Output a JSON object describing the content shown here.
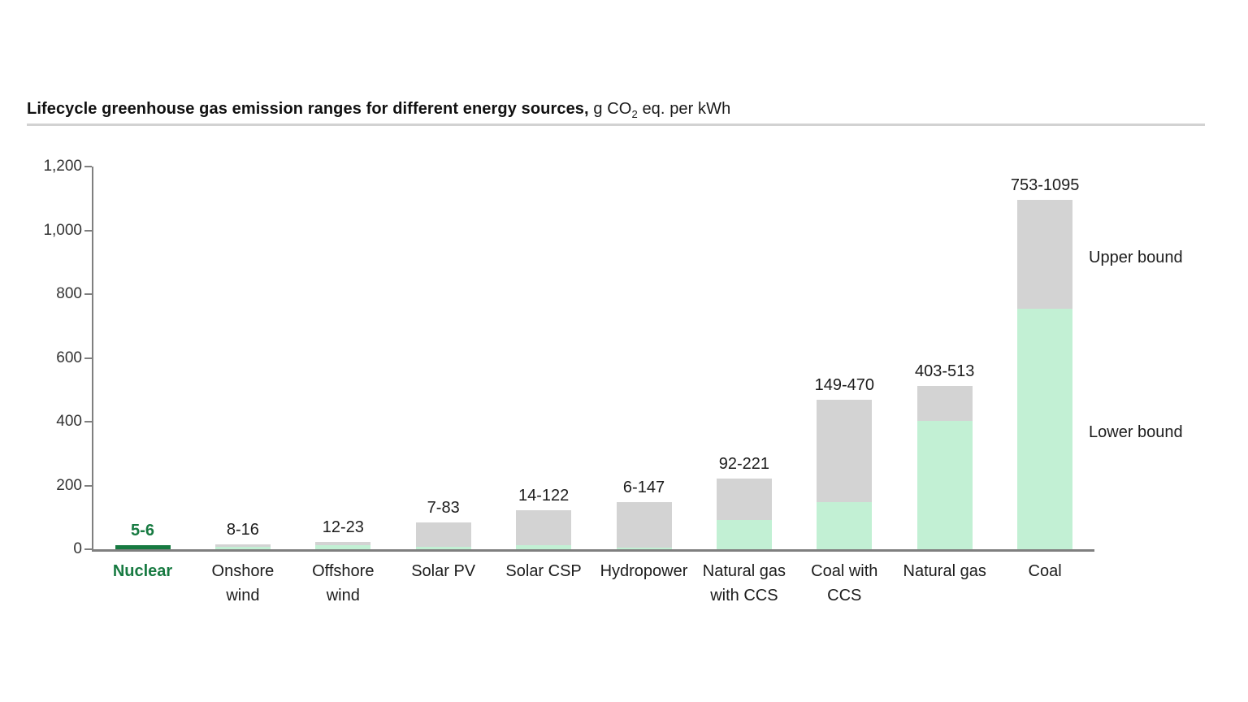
{
  "title": {
    "bold": "Lifecycle greenhouse gas emission ranges for different energy sources,",
    "unit_pre": " g CO",
    "unit_sub": "2",
    "unit_post": " eq. per kWh"
  },
  "legend": {
    "upper": "Upper bound",
    "lower": "Lower bound"
  },
  "colors": {
    "lower_bound_fill": "#c2f0d4",
    "upper_bound_fill": "#d3d3d3",
    "highlight_fill": "#177a41",
    "highlight_text": "#177a41",
    "axis": "#7f7f7f",
    "title_rule": "#d2d2d2",
    "text": "#1c1c1c"
  },
  "chart_data": {
    "type": "bar",
    "stacked": true,
    "title": "Lifecycle greenhouse gas emission ranges for different energy sources, g CO2 eq. per kWh",
    "xlabel": "",
    "ylabel": "g CO2 eq. per kWh",
    "ylim": [
      0,
      1200
    ],
    "ytick_step": 200,
    "ytick_labels": [
      "0",
      "200",
      "400",
      "600",
      "800",
      "1,000",
      "1,200"
    ],
    "grid": false,
    "legend_position": "right",
    "legend_entries": [
      "Upper bound",
      "Lower bound"
    ],
    "categories": [
      "Nuclear",
      "Onshore wind",
      "Offshore wind",
      "Solar PV",
      "Solar CSP",
      "Hydropower",
      "Natural gas with CCS",
      "Coal with CCS",
      "Natural gas",
      "Coal"
    ],
    "category_lines": [
      [
        "Nuclear"
      ],
      [
        "Onshore",
        "wind"
      ],
      [
        "Offshore",
        "wind"
      ],
      [
        "Solar PV"
      ],
      [
        "Solar CSP"
      ],
      [
        "Hydropower"
      ],
      [
        "Natural gas",
        "with CCS"
      ],
      [
        "Coal with",
        "CCS"
      ],
      [
        "Natural gas"
      ],
      [
        "Coal"
      ]
    ],
    "series": [
      {
        "name": "Lower bound",
        "values": [
          5,
          8,
          12,
          7,
          14,
          6,
          92,
          149,
          403,
          753
        ]
      },
      {
        "name": "Upper bound",
        "values": [
          6,
          16,
          23,
          83,
          122,
          147,
          221,
          470,
          513,
          1095
        ]
      }
    ],
    "range_labels": [
      "5-6",
      "8-16",
      "12-23",
      "7-83",
      "14-122",
      "6-147",
      "92-221",
      "149-470",
      "403-513",
      "753-1095"
    ],
    "highlight_index": 0
  }
}
